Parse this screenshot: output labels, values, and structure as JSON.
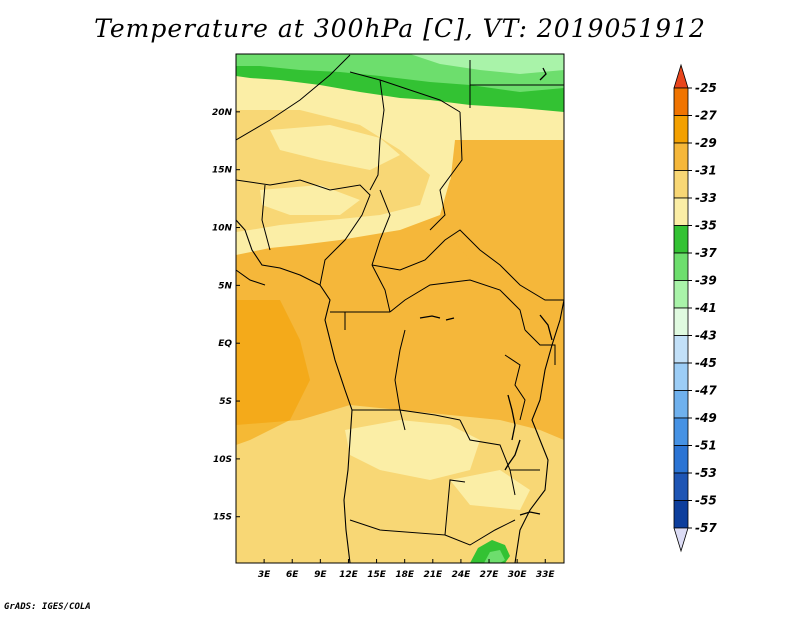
{
  "chart_data": {
    "type": "heatmap",
    "title": "Temperature at 300hPa [C], VT: 2019051912",
    "variable": "Temperature",
    "level": "300hPa",
    "units": "C",
    "valid_time": "2019051912",
    "x_axis": {
      "min": 0,
      "max": 35,
      "ticks": [
        3,
        6,
        9,
        12,
        15,
        18,
        21,
        24,
        27,
        30,
        33
      ],
      "tick_labels": [
        "3E",
        "6E",
        "9E",
        "12E",
        "15E",
        "18E",
        "21E",
        "24E",
        "27E",
        "30E",
        "33E"
      ]
    },
    "y_axis": {
      "min": -19,
      "max": 25,
      "ticks": [
        20,
        15,
        10,
        5,
        0,
        -5,
        -10,
        -15
      ],
      "tick_labels": [
        "20N",
        "15N",
        "10N",
        "5N",
        "EQ",
        "5S",
        "10S",
        "15S"
      ]
    },
    "colorbar": {
      "labels": [
        "-25",
        "-27",
        "-29",
        "-31",
        "-33",
        "-35",
        "-37",
        "-39",
        "-41",
        "-43",
        "-45",
        "-47",
        "-49",
        "-51",
        "-53",
        "-55",
        "-57"
      ],
      "colors": [
        "#e8451c",
        "#f07400",
        "#f3a000",
        "#f5b73a",
        "#f8d775",
        "#fbeea6",
        "#33c233",
        "#6dde6d",
        "#a9f3a9",
        "#e0fae0",
        "#c2e0f8",
        "#9ccdf6",
        "#6fb1ee",
        "#4692e4",
        "#2b74d4",
        "#1e55b4",
        "#0d3e9c",
        "#08206f",
        "#dcdcf5"
      ]
    },
    "regions": [
      {
        "name": "northern-green-band",
        "value_range": "-35 to -39"
      },
      {
        "name": "sahel-yellow",
        "value_range": "-33 to -35"
      },
      {
        "name": "central-africa-orange",
        "value_range": "-29 to -31"
      },
      {
        "name": "southern-africa-yellow",
        "value_range": "-31 to -33"
      },
      {
        "name": "south-green-patch",
        "value_range": "-35 to -37"
      }
    ]
  },
  "credit": "GrADS: IGES/COLA"
}
